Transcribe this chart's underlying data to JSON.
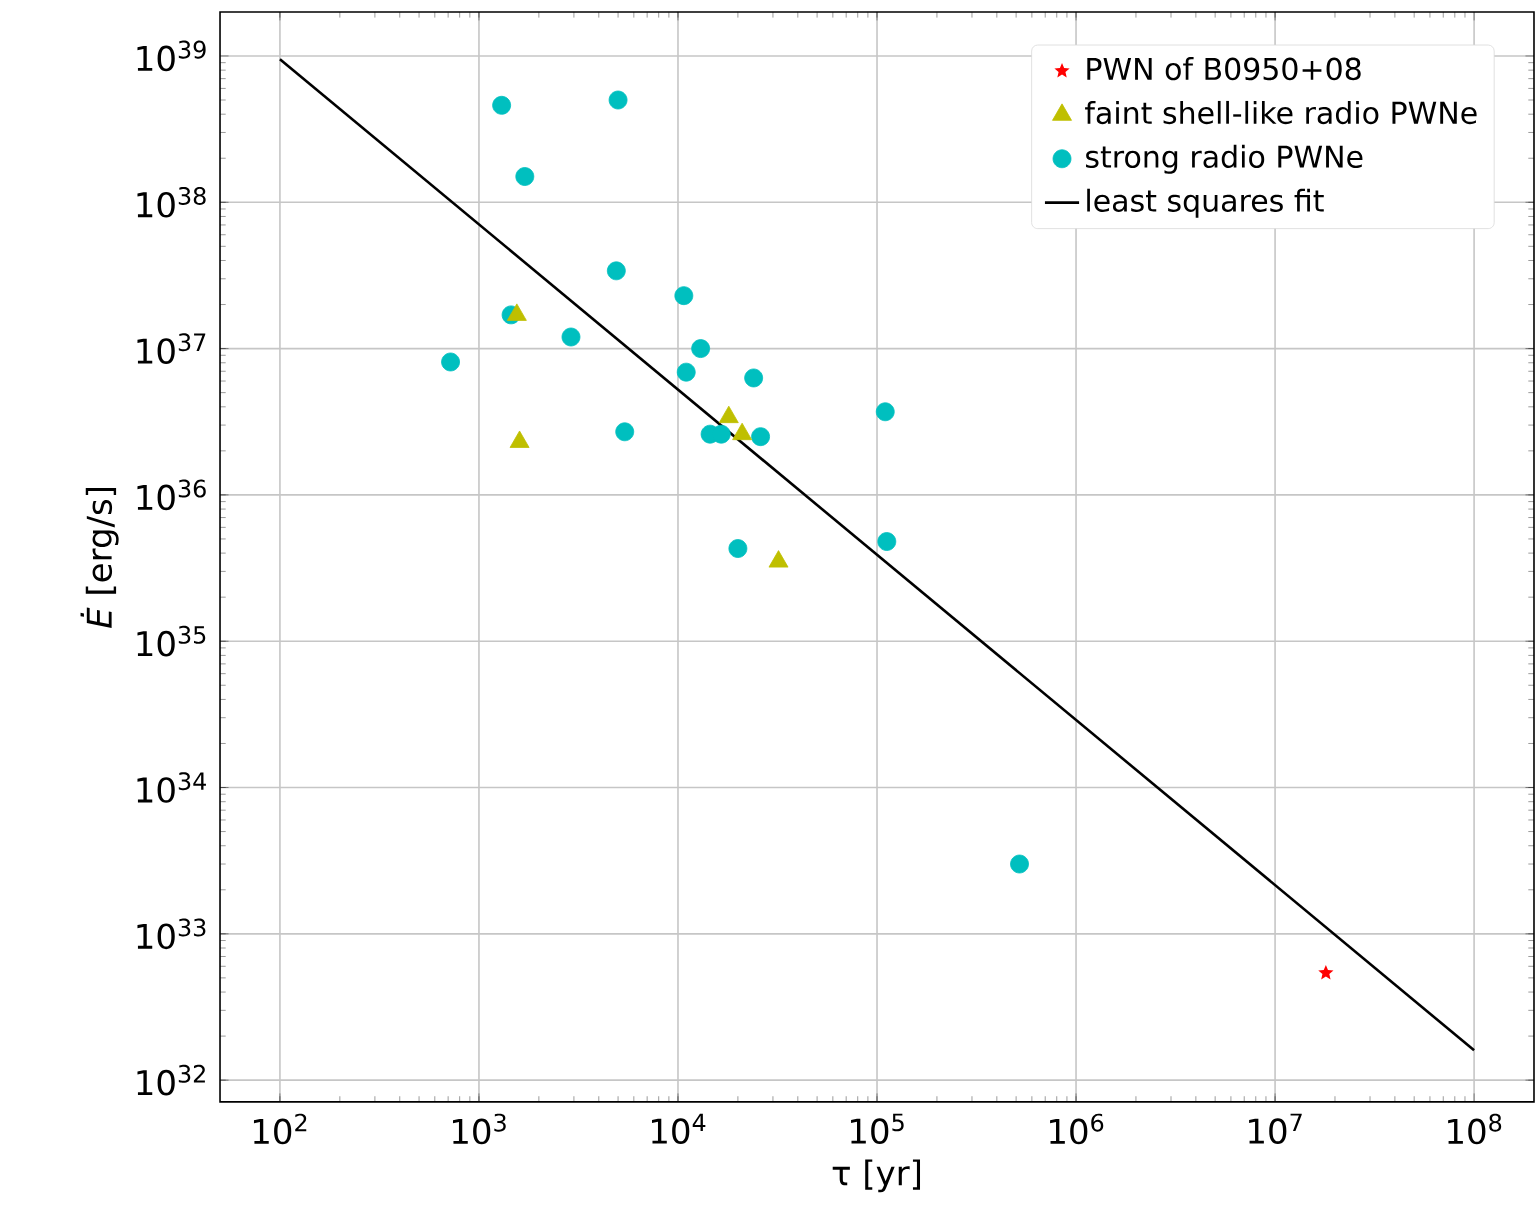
{
  "chart_data": {
    "type": "scatter",
    "xlabel": "τ [yr]",
    "ylabel": "*Ė* [erg/s]",
    "log": "xy",
    "grid": true,
    "legend": "top right",
    "xlim": [
      50,
      200000000.0
    ],
    "ylim": [
      7.1e+31,
      2e+39
    ],
    "xticks": [
      {
        "value": 100.0,
        "label": "10$^{2}$"
      },
      {
        "value": 1000.0,
        "label": "10$^{3}$"
      },
      {
        "value": 10000.0,
        "label": "10$^{4}$"
      },
      {
        "value": 100000.0,
        "label": "10$^{5}$"
      },
      {
        "value": 1000000.0,
        "label": "10$^{6}$"
      },
      {
        "value": 10000000.0,
        "label": "10$^{7}$"
      },
      {
        "value": 100000000.0,
        "label": "10$^{8}$"
      }
    ],
    "yticks": [
      {
        "value": 1e+32,
        "label": "10$^{32}$"
      },
      {
        "value": 1e+33,
        "label": "10$^{33}$"
      },
      {
        "value": 1e+34,
        "label": "10$^{34}$"
      },
      {
        "value": 1e+35,
        "label": "10$^{35}$"
      },
      {
        "value": 1e+36,
        "label": "10$^{36}$"
      },
      {
        "value": 1e+37,
        "label": "10$^{37}$"
      },
      {
        "value": 1e+38,
        "label": "10$^{38}$"
      },
      {
        "value": 1e+39,
        "label": "10$^{39}$"
      }
    ],
    "series": [
      {
        "name": "PWN of B0950+08",
        "color": "#ff0000",
        "marker": "star",
        "x": [
          18000000.0
        ],
        "values": [
          5.4e+32
        ]
      },
      {
        "name": "faint shell-like radio PWNe",
        "color": "#bfbf00",
        "marker": "triangle",
        "x": [
          1550.0,
          1600.0,
          18000.0,
          21000.0,
          32000.0
        ],
        "values": [
          1.7e+37,
          2.3e+36,
          3.4e+36,
          2.6e+36,
          3.5e+35
        ]
      },
      {
        "name": "strong radio PWNe",
        "color": "#00bfbf",
        "marker": "circle",
        "x": [
          1300.0,
          5000.0,
          1700.0,
          4900.0,
          10700.0,
          1450.0,
          2900.0,
          720.0,
          13000.0,
          11000.0,
          24000.0,
          5400.0,
          14500.0,
          16500.0,
          26000.0,
          20000.0,
          110000.0,
          112000.0,
          520000.0
        ],
        "values": [
          4.6e+38,
          5e+38,
          1.5e+38,
          3.4e+37,
          2.3e+37,
          1.7e+37,
          1.2e+37,
          8.1e+36,
          1e+37,
          6.9e+36,
          6.3e+36,
          2.7e+36,
          2.6e+36,
          2.6e+36,
          2.5e+36,
          4.3e+35,
          3.7e+36,
          4.8e+35,
          3e+33
        ]
      },
      {
        "name": "least squares fit",
        "type": "line",
        "color": "#000000",
        "marker": "none",
        "x": [
          100.0,
          100000000.0
        ],
        "values": [
          9.5e+38,
          1.6e+32
        ]
      }
    ]
  }
}
